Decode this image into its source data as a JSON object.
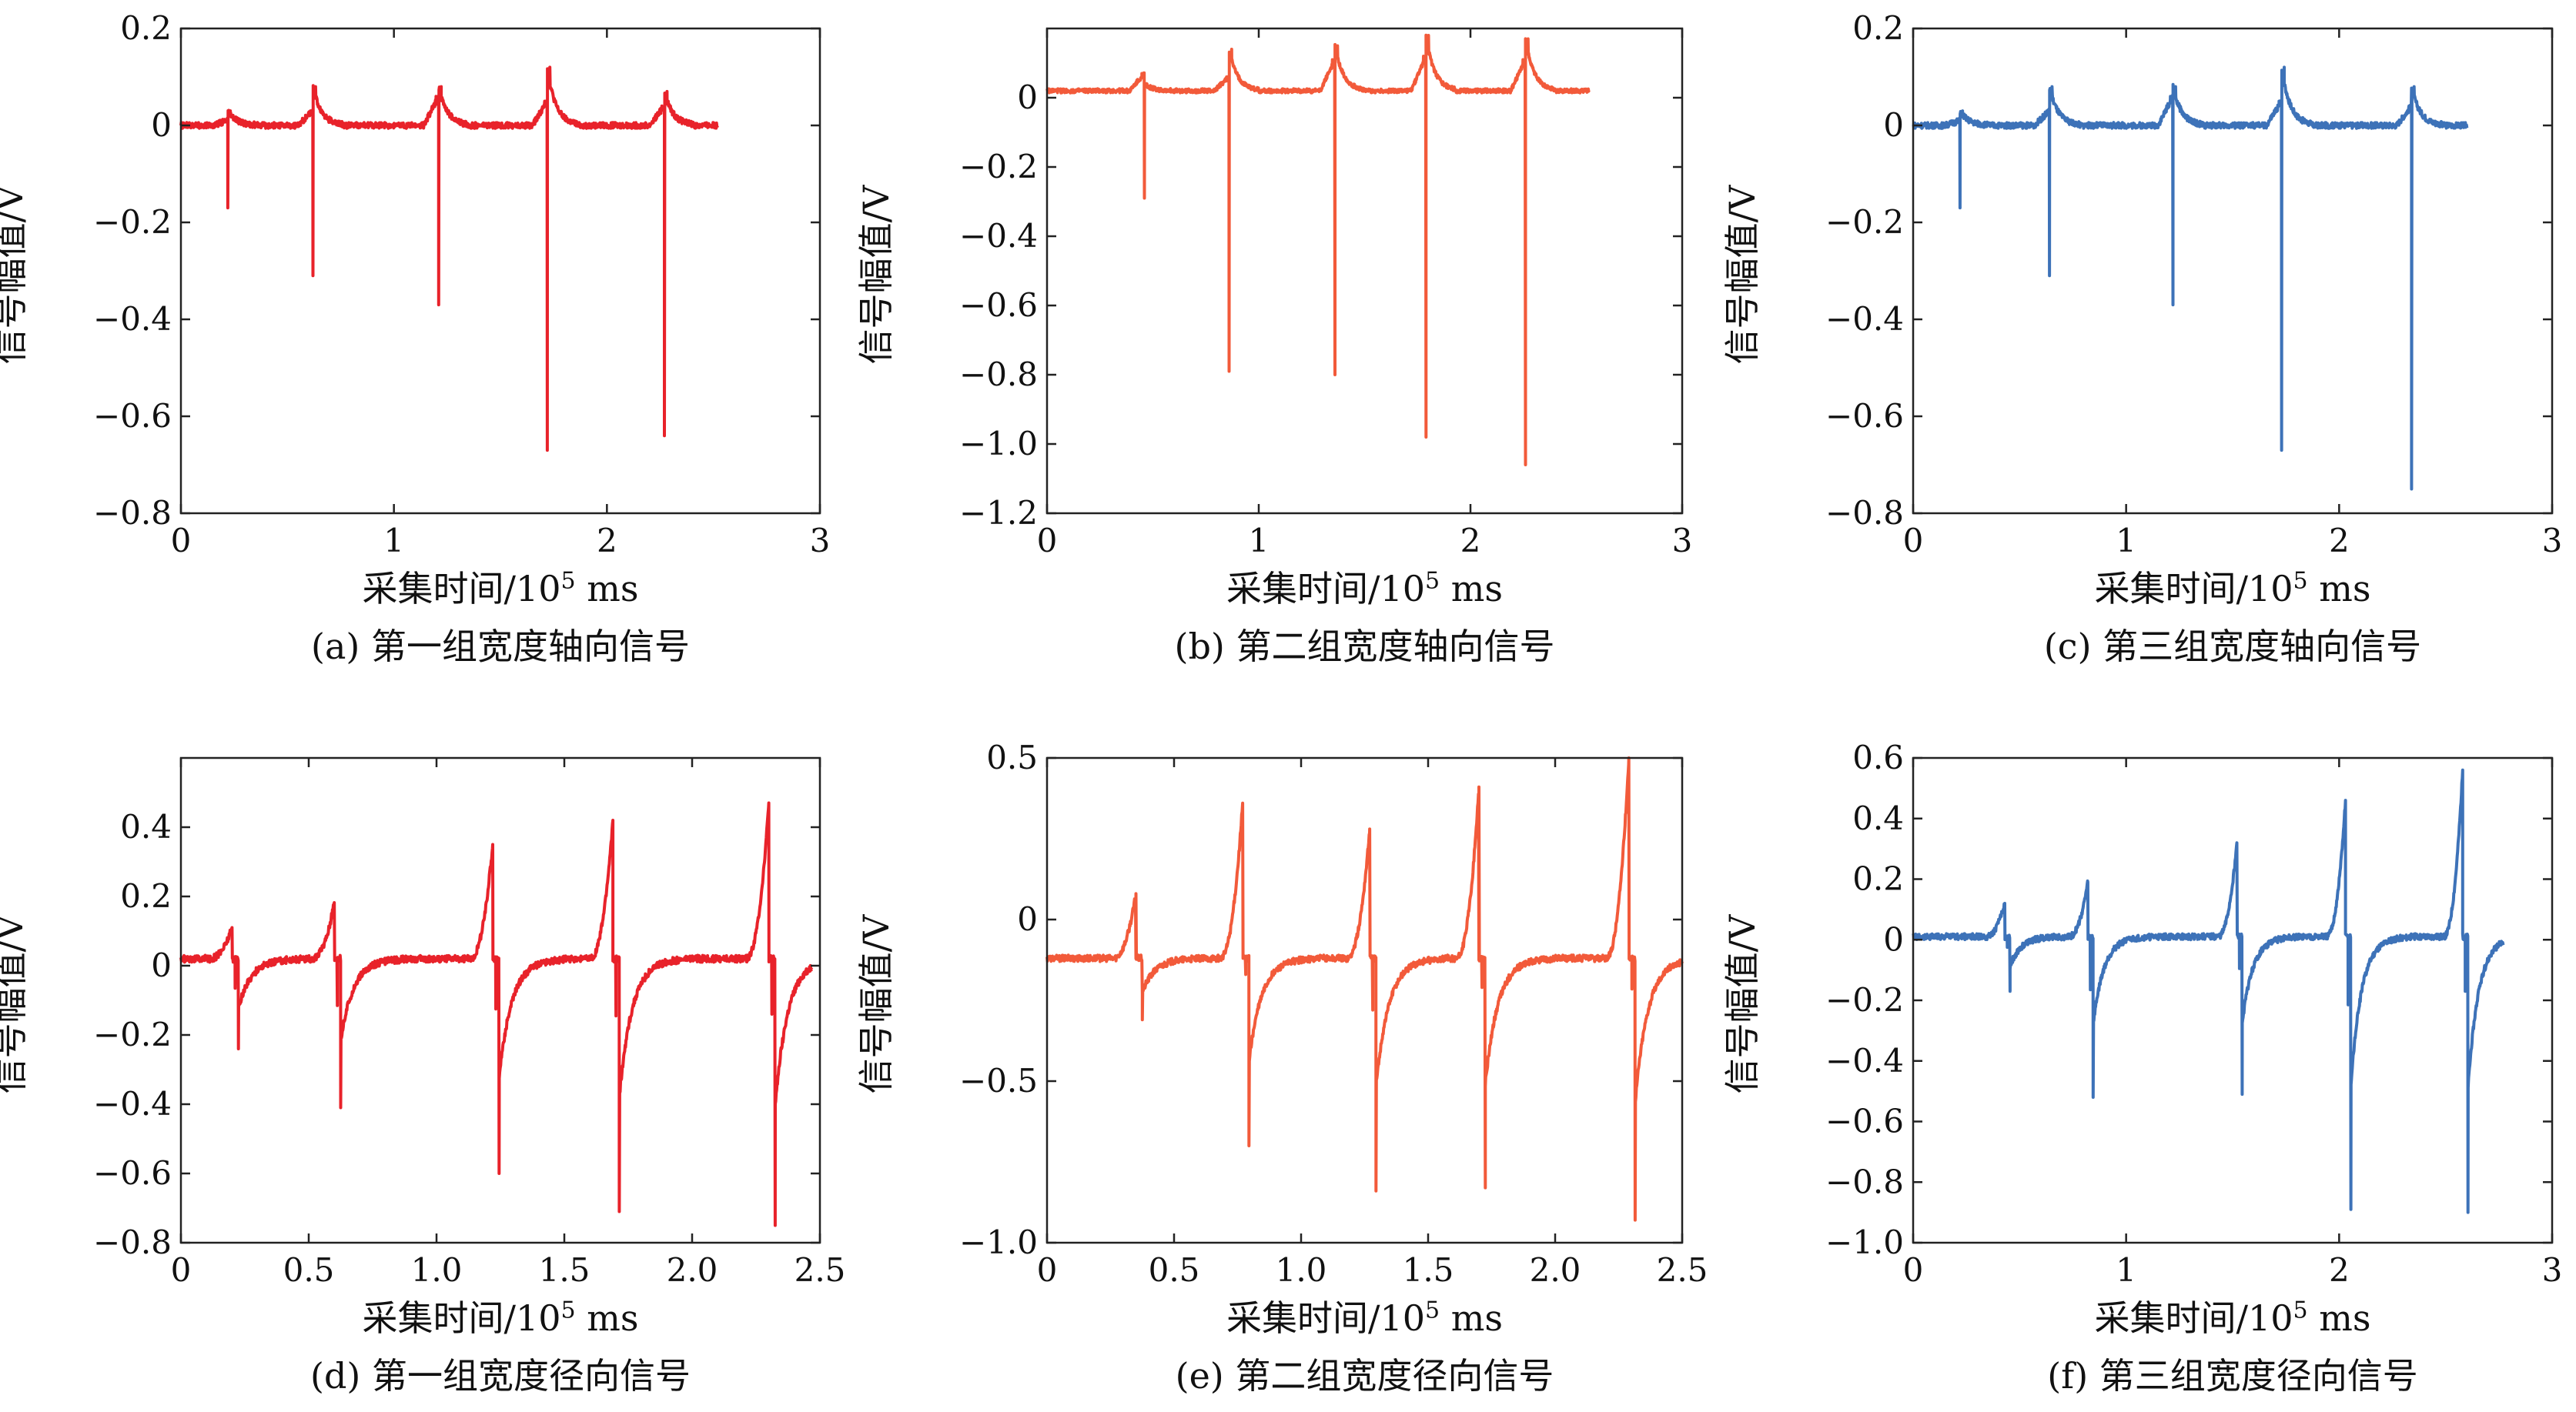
{
  "common": {
    "xlabel_main": "采集时间/10",
    "xlabel_sup": "5",
    "xlabel_tail": " ms",
    "ylabel": "信号幅值/V"
  },
  "chart_data": [
    {
      "id": "a",
      "type": "line",
      "caption": "(a) 第一组宽度轴向信号",
      "color": "#e8222a",
      "xlim": [
        0,
        3
      ],
      "ylim": [
        -0.8,
        0.2
      ],
      "xticks": [
        0,
        1,
        2,
        3
      ],
      "xtick_labels": [
        "0",
        "1",
        "2",
        "3"
      ],
      "yticks": [
        0.2,
        0,
        -0.2,
        -0.4,
        -0.6,
        -0.8
      ],
      "ytick_labels": [
        "0.2",
        "0",
        "−0.2",
        "−0.4",
        "−0.6",
        "−0.8"
      ],
      "x_end": 2.52,
      "baseline": 0.0,
      "events": [
        {
          "x": 0.22,
          "pre": 0.01,
          "min": -0.17,
          "post": 0.03
        },
        {
          "x": 0.62,
          "pre": 0.03,
          "min": -0.31,
          "post": 0.08
        },
        {
          "x": 1.21,
          "pre": 0.06,
          "min": -0.37,
          "post": 0.08
        },
        {
          "x": 1.72,
          "pre": 0.05,
          "min": -0.67,
          "post": 0.12
        },
        {
          "x": 2.27,
          "pre": 0.04,
          "min": -0.64,
          "post": 0.07
        }
      ]
    },
    {
      "id": "b",
      "type": "line",
      "caption": "(b) 第二组宽度轴向信号",
      "color": "#f25a3a",
      "xlim": [
        0,
        3
      ],
      "ylim": [
        -1.2,
        0.2
      ],
      "xticks": [
        0,
        1,
        2,
        3
      ],
      "xtick_labels": [
        "0",
        "1",
        "2",
        "3"
      ],
      "yticks": [
        0,
        -0.2,
        -0.4,
        -0.6,
        -0.8,
        -1.0,
        -1.2
      ],
      "ytick_labels": [
        "0",
        "−0.2",
        "−0.4",
        "−0.6",
        "−0.8",
        "−1.0",
        "−1.2"
      ],
      "x_end": 2.56,
      "baseline": 0.02,
      "events": [
        {
          "x": 0.46,
          "pre": 0.05,
          "min": -0.29,
          "post": 0.02
        },
        {
          "x": 0.86,
          "pre": 0.04,
          "min": -0.79,
          "post": 0.12
        },
        {
          "x": 1.36,
          "pre": 0.09,
          "min": -0.8,
          "post": 0.13
        },
        {
          "x": 1.79,
          "pre": 0.1,
          "min": -0.98,
          "post": 0.16
        },
        {
          "x": 2.26,
          "pre": 0.09,
          "min": -1.06,
          "post": 0.15
        }
      ]
    },
    {
      "id": "c",
      "type": "line",
      "caption": "(c) 第三组宽度轴向信号",
      "color": "#3d72b8",
      "xlim": [
        0,
        3
      ],
      "ylim": [
        -0.8,
        0.2
      ],
      "xticks": [
        0,
        1,
        2,
        3
      ],
      "xtick_labels": [
        "0",
        "1",
        "2",
        "3"
      ],
      "yticks": [
        0.2,
        0,
        -0.2,
        -0.4,
        -0.6,
        -0.8
      ],
      "ytick_labels": [
        "0.2",
        "0",
        "−0.2",
        "−0.4",
        "−0.6",
        "−0.8"
      ],
      "x_end": 2.6,
      "baseline": 0.0,
      "events": [
        {
          "x": 0.22,
          "pre": 0.01,
          "min": -0.17,
          "post": 0.03
        },
        {
          "x": 0.64,
          "pre": 0.03,
          "min": -0.31,
          "post": 0.08
        },
        {
          "x": 1.22,
          "pre": 0.06,
          "min": -0.37,
          "post": 0.08
        },
        {
          "x": 1.73,
          "pre": 0.05,
          "min": -0.67,
          "post": 0.12
        },
        {
          "x": 2.34,
          "pre": 0.04,
          "min": -0.75,
          "post": 0.08
        }
      ]
    },
    {
      "id": "d",
      "type": "line",
      "caption": "(d) 第一组宽度径向信号",
      "color": "#e8222a",
      "xlim": [
        0,
        2.5
      ],
      "ylim": [
        -0.8,
        0.6
      ],
      "xticks": [
        0,
        0.5,
        1.0,
        1.5,
        2.0,
        2.5
      ],
      "xtick_labels": [
        "0",
        "0.5",
        "1.0",
        "1.5",
        "2.0",
        "2.5"
      ],
      "yticks": [
        0.4,
        0.2,
        0,
        -0.2,
        -0.4,
        -0.6,
        -0.8
      ],
      "ytick_labels": [
        "0.4",
        "0.2",
        "0",
        "−0.2",
        "−0.4",
        "−0.6",
        "−0.8"
      ],
      "x_end": 2.47,
      "baseline": 0.02,
      "events": [
        {
          "x": 0.2,
          "peak": 0.11,
          "min": -0.24
        },
        {
          "x": 0.6,
          "peak": 0.18,
          "min": -0.41
        },
        {
          "x": 1.22,
          "peak": 0.35,
          "min": -0.6
        },
        {
          "x": 1.69,
          "peak": 0.42,
          "min": -0.71
        },
        {
          "x": 2.3,
          "peak": 0.47,
          "min": -0.75
        }
      ]
    },
    {
      "id": "e",
      "type": "line",
      "caption": "(e) 第二组宽度径向信号",
      "color": "#f25a3a",
      "xlim": [
        0,
        2.5
      ],
      "ylim": [
        -1.0,
        0.5
      ],
      "xticks": [
        0,
        0.5,
        1.0,
        1.5,
        2.0,
        2.5
      ],
      "xtick_labels": [
        "0",
        "0.5",
        "1.0",
        "1.5",
        "2.0",
        "2.5"
      ],
      "yticks": [
        0.5,
        0,
        -0.5,
        -1.0
      ],
      "ytick_labels": [
        "0.5",
        "0",
        "−0.5",
        "−1.0"
      ],
      "x_end": 2.5,
      "baseline": -0.12,
      "events": [
        {
          "x": 0.35,
          "peak": 0.08,
          "min": -0.31
        },
        {
          "x": 0.77,
          "peak": 0.36,
          "min": -0.7
        },
        {
          "x": 1.27,
          "peak": 0.28,
          "min": -0.84
        },
        {
          "x": 1.7,
          "peak": 0.41,
          "min": -0.83
        },
        {
          "x": 2.29,
          "peak": 0.5,
          "min": -0.93
        }
      ]
    },
    {
      "id": "f",
      "type": "line",
      "caption": "(f) 第三组宽度径向信号",
      "color": "#3d72b8",
      "xlim": [
        0,
        3
      ],
      "ylim": [
        -1.0,
        0.6
      ],
      "xticks": [
        0,
        1,
        2,
        3
      ],
      "xtick_labels": [
        "0",
        "1",
        "2",
        "3"
      ],
      "yticks": [
        0.6,
        0.4,
        0.2,
        0,
        -0.2,
        -0.4,
        -0.6,
        -0.8,
        -1.0
      ],
      "ytick_labels": [
        "0.6",
        "0.4",
        "0.2",
        "0",
        "−0.2",
        "−0.4",
        "−0.6",
        "−0.8",
        "−1.0"
      ],
      "x_end": 2.77,
      "baseline": 0.01,
      "events": [
        {
          "x": 0.43,
          "peak": 0.12,
          "min": -0.17
        },
        {
          "x": 0.82,
          "peak": 0.19,
          "min": -0.52
        },
        {
          "x": 1.52,
          "peak": 0.32,
          "min": -0.51
        },
        {
          "x": 2.03,
          "peak": 0.46,
          "min": -0.89
        },
        {
          "x": 2.58,
          "peak": 0.56,
          "min": -0.9
        }
      ]
    }
  ]
}
